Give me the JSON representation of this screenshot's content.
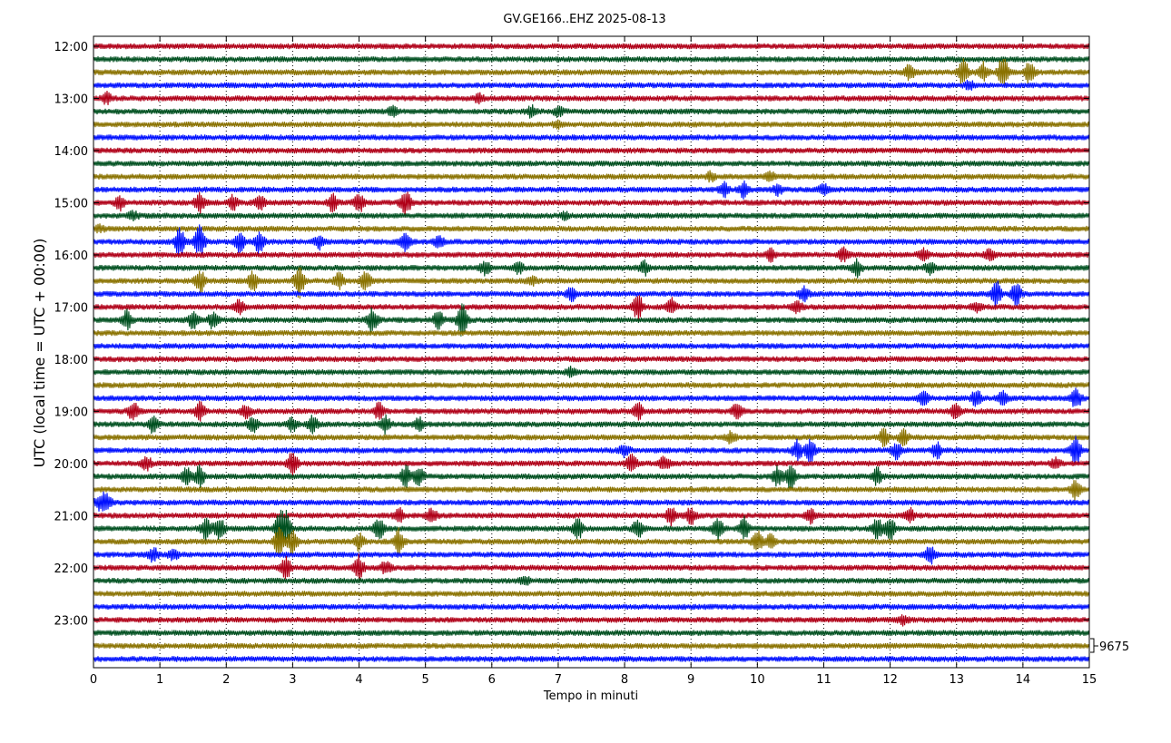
{
  "chart_data": {
    "type": "line",
    "title": "GV.GE166..EHZ 2025-08-13",
    "xlabel": "Tempo in minuti",
    "ylabel": "UTC (local time = UTC + 00:00)",
    "xlim": [
      0,
      15
    ],
    "x_ticks": [
      "0",
      "1",
      "2",
      "3",
      "4",
      "5",
      "6",
      "7",
      "8",
      "9",
      "10",
      "11",
      "12",
      "13",
      "14",
      "15"
    ],
    "y_ticks": [
      "12:00",
      "13:00",
      "14:00",
      "15:00",
      "16:00",
      "17:00",
      "18:00",
      "19:00",
      "20:00",
      "21:00",
      "22:00",
      "23:00"
    ],
    "grid": "vertical dotted",
    "scale_label": "9675",
    "colors": [
      "#b00018",
      "#005020",
      "#8a7200",
      "#0010ff"
    ],
    "row_interval_minutes": 15,
    "series": [
      {
        "start": "12:00",
        "events": []
      },
      {
        "start": "12:15",
        "events": []
      },
      {
        "start": "12:30",
        "events": [
          [
            12.3,
            0.6
          ],
          [
            13.1,
            1.0
          ],
          [
            13.4,
            0.7
          ],
          [
            13.7,
            1.2
          ],
          [
            14.1,
            0.8
          ]
        ]
      },
      {
        "start": "12:45",
        "events": [
          [
            13.2,
            0.3
          ]
        ]
      },
      {
        "start": "13:00",
        "events": [
          [
            0.2,
            0.4
          ],
          [
            5.8,
            0.3
          ]
        ]
      },
      {
        "start": "13:15",
        "events": [
          [
            4.5,
            0.3
          ],
          [
            6.6,
            0.4
          ],
          [
            7.0,
            0.3
          ]
        ]
      },
      {
        "start": "13:30",
        "events": [
          [
            7.0,
            0.2
          ]
        ]
      },
      {
        "start": "13:45",
        "events": []
      },
      {
        "start": "14:00",
        "events": []
      },
      {
        "start": "14:15",
        "events": []
      },
      {
        "start": "14:30",
        "events": [
          [
            9.3,
            0.3
          ],
          [
            10.2,
            0.3
          ]
        ]
      },
      {
        "start": "14:45",
        "events": [
          [
            9.5,
            0.5
          ],
          [
            9.8,
            0.6
          ],
          [
            10.3,
            0.4
          ],
          [
            11.0,
            0.4
          ]
        ]
      },
      {
        "start": "15:00",
        "events": [
          [
            0.4,
            0.5
          ],
          [
            1.6,
            0.7
          ],
          [
            2.1,
            0.5
          ],
          [
            2.5,
            0.6
          ],
          [
            3.6,
            0.6
          ],
          [
            4.0,
            0.7
          ],
          [
            4.7,
            1.0
          ]
        ]
      },
      {
        "start": "15:15",
        "events": [
          [
            0.6,
            0.3
          ],
          [
            7.1,
            0.2
          ]
        ]
      },
      {
        "start": "15:30",
        "events": [
          [
            0.1,
            0.2
          ]
        ]
      },
      {
        "start": "15:45",
        "events": [
          [
            1.3,
            1.0
          ],
          [
            1.6,
            1.2
          ],
          [
            2.2,
            0.7
          ],
          [
            2.5,
            0.8
          ],
          [
            3.4,
            0.5
          ],
          [
            4.7,
            0.7
          ],
          [
            5.2,
            0.4
          ]
        ]
      },
      {
        "start": "16:00",
        "events": [
          [
            10.2,
            0.4
          ],
          [
            11.3,
            0.5
          ],
          [
            12.5,
            0.4
          ],
          [
            13.5,
            0.4
          ]
        ]
      },
      {
        "start": "16:15",
        "events": [
          [
            5.9,
            0.5
          ],
          [
            6.4,
            0.4
          ],
          [
            8.3,
            0.5
          ],
          [
            11.5,
            0.6
          ],
          [
            12.6,
            0.5
          ]
        ]
      },
      {
        "start": "16:30",
        "events": [
          [
            1.6,
            0.9
          ],
          [
            2.4,
            0.7
          ],
          [
            3.1,
            1.2
          ],
          [
            3.7,
            0.6
          ],
          [
            4.1,
            0.7
          ],
          [
            6.6,
            0.3
          ]
        ]
      },
      {
        "start": "16:45",
        "events": [
          [
            7.2,
            0.5
          ],
          [
            10.7,
            0.5
          ],
          [
            13.6,
            1.0
          ],
          [
            13.9,
            0.8
          ]
        ]
      },
      {
        "start": "17:00",
        "events": [
          [
            2.2,
            0.5
          ],
          [
            8.2,
            0.9
          ],
          [
            8.7,
            0.6
          ],
          [
            10.6,
            0.4
          ],
          [
            13.3,
            0.3
          ]
        ]
      },
      {
        "start": "17:15",
        "events": [
          [
            0.5,
            0.7
          ],
          [
            1.5,
            0.6
          ],
          [
            1.8,
            0.6
          ],
          [
            4.2,
            1.0
          ],
          [
            5.2,
            0.8
          ],
          [
            5.55,
            1.3
          ]
        ]
      },
      {
        "start": "17:30",
        "events": []
      },
      {
        "start": "17:45",
        "events": []
      },
      {
        "start": "18:00",
        "events": []
      },
      {
        "start": "18:15",
        "events": [
          [
            7.2,
            0.3
          ]
        ]
      },
      {
        "start": "18:30",
        "events": []
      },
      {
        "start": "18:45",
        "events": [
          [
            12.5,
            0.5
          ],
          [
            13.3,
            0.6
          ],
          [
            13.7,
            0.5
          ],
          [
            14.8,
            0.8
          ]
        ]
      },
      {
        "start": "19:00",
        "events": [
          [
            0.6,
            0.7
          ],
          [
            1.6,
            0.7
          ],
          [
            2.3,
            0.5
          ],
          [
            4.3,
            0.6
          ],
          [
            8.2,
            0.6
          ],
          [
            9.7,
            0.7
          ],
          [
            13.0,
            0.6
          ]
        ]
      },
      {
        "start": "19:15",
        "events": [
          [
            0.9,
            0.6
          ],
          [
            2.4,
            0.6
          ],
          [
            3.0,
            0.5
          ],
          [
            3.3,
            0.6
          ],
          [
            4.4,
            0.6
          ],
          [
            4.9,
            0.5
          ]
        ]
      },
      {
        "start": "19:30",
        "events": [
          [
            9.6,
            0.4
          ],
          [
            11.9,
            0.6
          ],
          [
            12.2,
            0.5
          ]
        ]
      },
      {
        "start": "19:45",
        "events": [
          [
            8.0,
            0.5
          ],
          [
            10.6,
            0.7
          ],
          [
            10.8,
            0.8
          ],
          [
            12.1,
            0.6
          ],
          [
            12.7,
            0.6
          ],
          [
            14.8,
            1.1
          ]
        ]
      },
      {
        "start": "20:00",
        "events": [
          [
            0.8,
            0.5
          ],
          [
            3.0,
            0.9
          ],
          [
            8.1,
            0.7
          ],
          [
            8.6,
            0.5
          ],
          [
            14.5,
            0.4
          ]
        ]
      },
      {
        "start": "20:15",
        "events": [
          [
            1.4,
            0.6
          ],
          [
            1.6,
            0.8
          ],
          [
            4.7,
            0.8
          ],
          [
            4.9,
            0.7
          ],
          [
            10.3,
            0.7
          ],
          [
            10.5,
            0.9
          ],
          [
            11.8,
            0.6
          ]
        ]
      },
      {
        "start": "20:30",
        "events": [
          [
            14.8,
            0.7
          ]
        ]
      },
      {
        "start": "20:45",
        "events": [
          [
            0.1,
            0.6
          ],
          [
            0.2,
            0.5
          ]
        ]
      },
      {
        "start": "21:00",
        "events": [
          [
            4.6,
            0.5
          ],
          [
            5.1,
            0.5
          ],
          [
            8.7,
            0.7
          ],
          [
            9.0,
            0.6
          ],
          [
            10.8,
            0.5
          ],
          [
            12.3,
            0.5
          ]
        ]
      },
      {
        "start": "21:15",
        "events": [
          [
            1.7,
            0.9
          ],
          [
            1.9,
            0.8
          ],
          [
            2.8,
            1.0
          ],
          [
            2.9,
            1.2
          ],
          [
            4.3,
            0.8
          ],
          [
            7.3,
            0.8
          ],
          [
            8.2,
            0.7
          ],
          [
            9.4,
            0.9
          ],
          [
            9.8,
            0.8
          ],
          [
            11.8,
            0.9
          ],
          [
            12.0,
            0.8
          ]
        ]
      },
      {
        "start": "21:30",
        "events": [
          [
            2.8,
            1.2
          ],
          [
            3.0,
            1.0
          ],
          [
            4.0,
            0.6
          ],
          [
            4.6,
            0.9
          ],
          [
            10.0,
            0.8
          ],
          [
            10.2,
            0.6
          ]
        ]
      },
      {
        "start": "21:45",
        "events": [
          [
            0.9,
            0.5
          ],
          [
            1.2,
            0.4
          ],
          [
            12.6,
            0.7
          ]
        ]
      },
      {
        "start": "22:00",
        "events": [
          [
            2.9,
            0.8
          ],
          [
            4.0,
            0.9
          ],
          [
            4.4,
            0.5
          ]
        ]
      },
      {
        "start": "22:15",
        "events": [
          [
            6.5,
            0.3
          ]
        ]
      },
      {
        "start": "22:30",
        "events": []
      },
      {
        "start": "22:45",
        "events": []
      },
      {
        "start": "23:00",
        "events": [
          [
            12.2,
            0.3
          ]
        ]
      },
      {
        "start": "23:15",
        "events": []
      },
      {
        "start": "23:30",
        "events": []
      },
      {
        "start": "23:45",
        "events": []
      }
    ]
  }
}
